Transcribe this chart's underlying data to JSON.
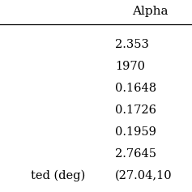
{
  "col_header": "Alpha",
  "rows": [
    {
      "label": "",
      "value": "2.353"
    },
    {
      "label": "",
      "value": "1970"
    },
    {
      "label": "",
      "value": "0.1648"
    },
    {
      "label": "",
      "value": "0.1726"
    },
    {
      "label": "",
      "value": "0.1959"
    },
    {
      "label": "",
      "value": "2.7645"
    },
    {
      "label": "ted (deg)",
      "value": "(27.04,10"
    }
  ],
  "bg_color": "#ffffff",
  "text_color": "#000000",
  "font_size": 10.5,
  "header_font_size": 11
}
